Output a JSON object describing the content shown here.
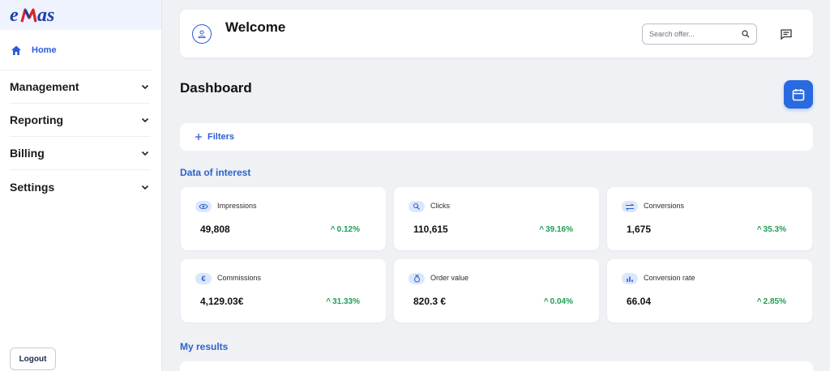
{
  "brand": {
    "logo_text": "emas"
  },
  "sidebar": {
    "home_label": "Home",
    "items": [
      {
        "label": "Management"
      },
      {
        "label": "Reporting"
      },
      {
        "label": "Billing"
      },
      {
        "label": "Settings"
      }
    ],
    "logout_label": "Logout"
  },
  "header": {
    "welcome": "Welcome",
    "search_placeholder": "Search offer...",
    "icons": {
      "avatar": "user-circle-icon",
      "search": "search-icon",
      "chat": "chat-icon"
    }
  },
  "page": {
    "title": "Dashboard",
    "filters_label": "Filters",
    "section_data": "Data of interest",
    "section_results": "My results"
  },
  "kpis": [
    {
      "label": "Impressions",
      "value": "49,808",
      "delta": "0.12%",
      "icon": "eye-icon"
    },
    {
      "label": "Clicks",
      "value": "110,615",
      "delta": "39.16%",
      "icon": "click-icon"
    },
    {
      "label": "Conversions",
      "value": "1,675",
      "delta": "35.3%",
      "icon": "swap-icon"
    },
    {
      "label": "Commissions",
      "value": "4,129.03€",
      "delta": "31.33%",
      "icon": "euro-icon"
    },
    {
      "label": "Order value",
      "value": "820.3 €",
      "delta": "0.04%",
      "icon": "money-bag-icon"
    },
    {
      "label": "Conversion rate",
      "value": "66.04",
      "delta": "2.85%",
      "icon": "bar-chart-icon"
    }
  ],
  "colors": {
    "accent": "#2a5bd7",
    "positive": "#1f9d55",
    "background": "#eff1f5"
  }
}
